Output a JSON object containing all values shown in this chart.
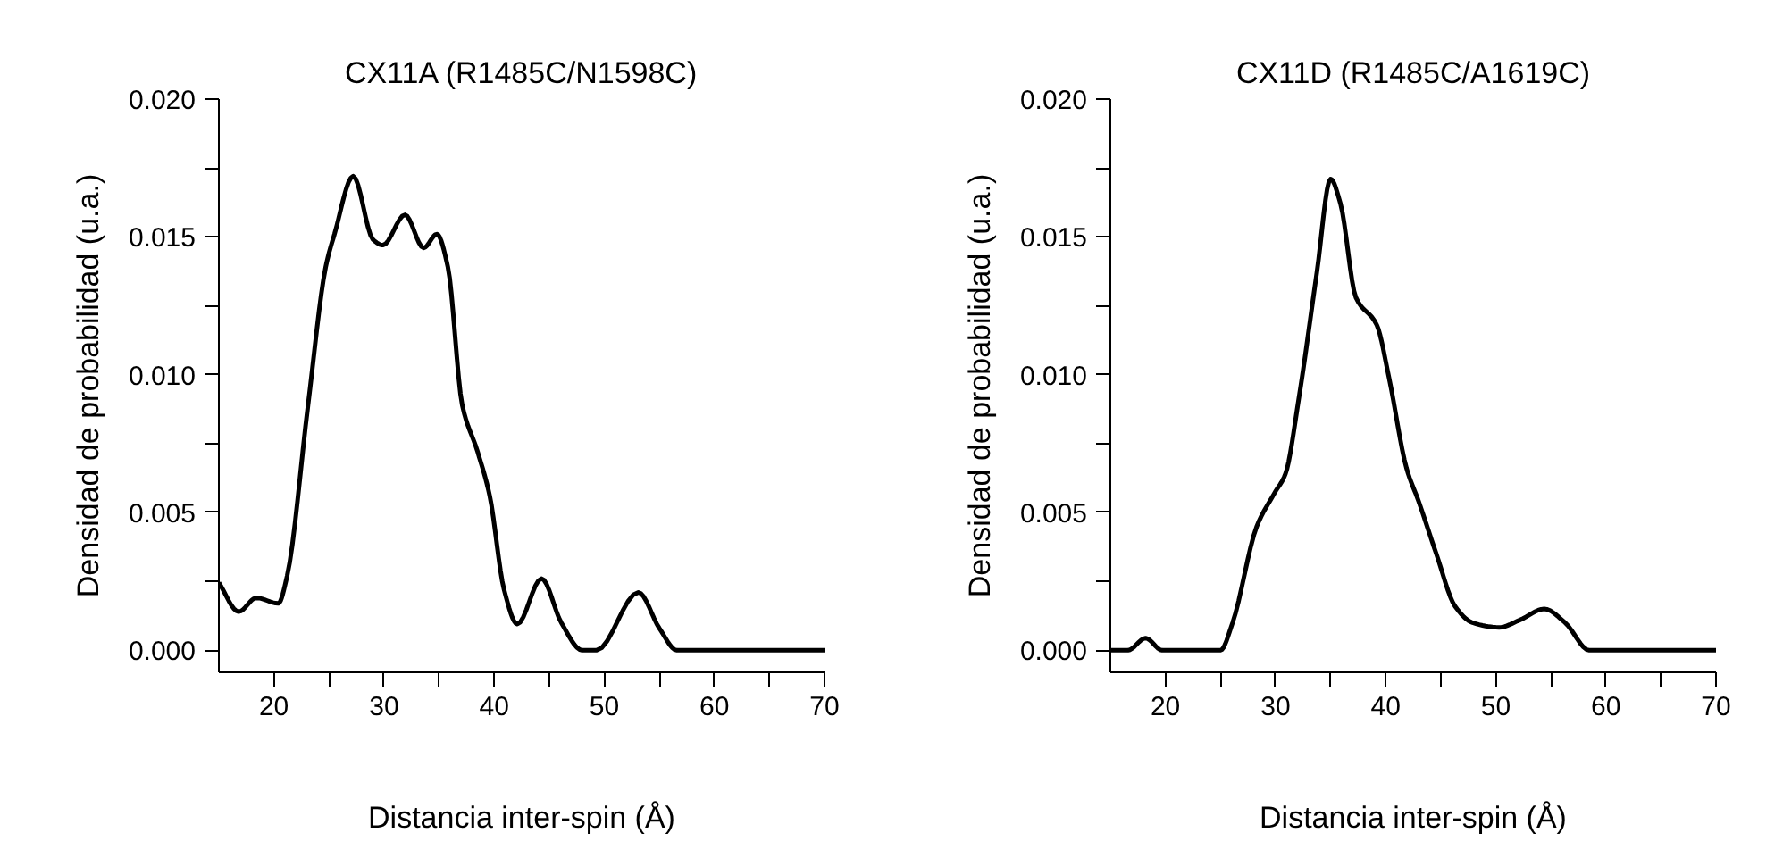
{
  "chart_data": [
    {
      "type": "line",
      "title": "CX11A (R1485C/N1598C)",
      "xlabel": "Distancia inter-spin (Å)",
      "ylabel": "Densidad de probabilidad (u.a.)",
      "x": [
        15,
        16.8,
        18.4,
        20.4,
        21.2,
        23.1,
        24.7,
        25.5,
        27.2,
        29.0,
        29.9,
        31.9,
        33.6,
        34.8,
        35.8,
        37.1,
        38.5,
        39.6,
        40.9,
        42.1,
        44.3,
        46.1,
        48,
        49.3,
        53.1,
        55,
        56.6,
        70
      ],
      "series": [
        {
          "color": "#000000",
          "values": [
            0.00245,
            0.0014,
            0.0019,
            0.0017,
            0.0027,
            0.0089,
            0.0139,
            0.0151,
            0.0172,
            0.0149,
            0.0147,
            0.0158,
            0.0146,
            0.0151,
            0.0139,
            0.0089,
            0.0072,
            0.0056,
            0.0022,
            0.00095,
            0.0026,
            0.001,
            0,
            0,
            0.0021,
            0.0008,
            0,
            0
          ]
        }
      ],
      "xlim": [
        15,
        70
      ],
      "ylim": [
        -0.0008,
        0.02
      ],
      "xticks": [
        20,
        {
          "value": 25,
          "label": null
        },
        30,
        {
          "value": 35,
          "label": null
        },
        40,
        {
          "value": 45,
          "label": null
        },
        50,
        {
          "value": 55,
          "label": null
        },
        60,
        {
          "value": 65,
          "label": null
        },
        70
      ],
      "yticks": [
        {
          "value": 0,
          "label": "0.000"
        },
        {
          "value": 0.0025,
          "label": null
        },
        {
          "value": 0.005,
          "label": "0.005"
        },
        {
          "value": 0.0075,
          "label": null
        },
        {
          "value": 0.01,
          "label": "0.010"
        },
        {
          "value": 0.0125,
          "label": null
        },
        {
          "value": 0.015,
          "label": "0.015"
        },
        {
          "value": 0.0175,
          "label": null
        },
        {
          "value": 0.02,
          "label": "0.020"
        }
      ],
      "grid": false,
      "marker": "none",
      "line_style": "solid"
    },
    {
      "type": "line",
      "title": "CX11D (R1485C/A1619C)",
      "xlabel": "Distancia inter-spin (Å)",
      "ylabel": "Densidad de probabilidad (u.a.)",
      "x": [
        15,
        16.6,
        18.2,
        19.7,
        21,
        25,
        26.1,
        28.3,
        29.9,
        30.9,
        32.1,
        33.75,
        35,
        35.9,
        37.3,
        39.2,
        40.3,
        41.9,
        43,
        44.6,
        46.3,
        47.9,
        50.3,
        52.2,
        54.4,
        56.3,
        58.5,
        70
      ],
      "series": [
        {
          "color": "#000000",
          "values": [
            0,
            0,
            0.00044,
            0,
            0,
            0,
            0.001,
            0.0045,
            0.0057,
            0.0064,
            0.0091,
            0.0137,
            0.0171,
            0.0162,
            0.0128,
            0.0118,
            0.0099,
            0.0066,
            0.0054,
            0.0035,
            0.0016,
            0.001,
            0.00083,
            0.0011,
            0.0015,
            0.001,
            0,
            0
          ]
        }
      ],
      "xlim": [
        15,
        70
      ],
      "ylim": [
        -0.0008,
        0.02
      ],
      "xticks": [
        20,
        {
          "value": 25,
          "label": null
        },
        30,
        {
          "value": 35,
          "label": null
        },
        40,
        {
          "value": 45,
          "label": null
        },
        50,
        {
          "value": 55,
          "label": null
        },
        60,
        {
          "value": 65,
          "label": null
        },
        70
      ],
      "yticks": [
        {
          "value": 0,
          "label": "0.000"
        },
        {
          "value": 0.0025,
          "label": null
        },
        {
          "value": 0.005,
          "label": "0.005"
        },
        {
          "value": 0.0075,
          "label": null
        },
        {
          "value": 0.01,
          "label": "0.010"
        },
        {
          "value": 0.0125,
          "label": null
        },
        {
          "value": 0.015,
          "label": "0.015"
        },
        {
          "value": 0.0175,
          "label": null
        },
        {
          "value": 0.02,
          "label": "0.020"
        }
      ],
      "grid": false,
      "marker": "none",
      "line_style": "solid"
    }
  ]
}
